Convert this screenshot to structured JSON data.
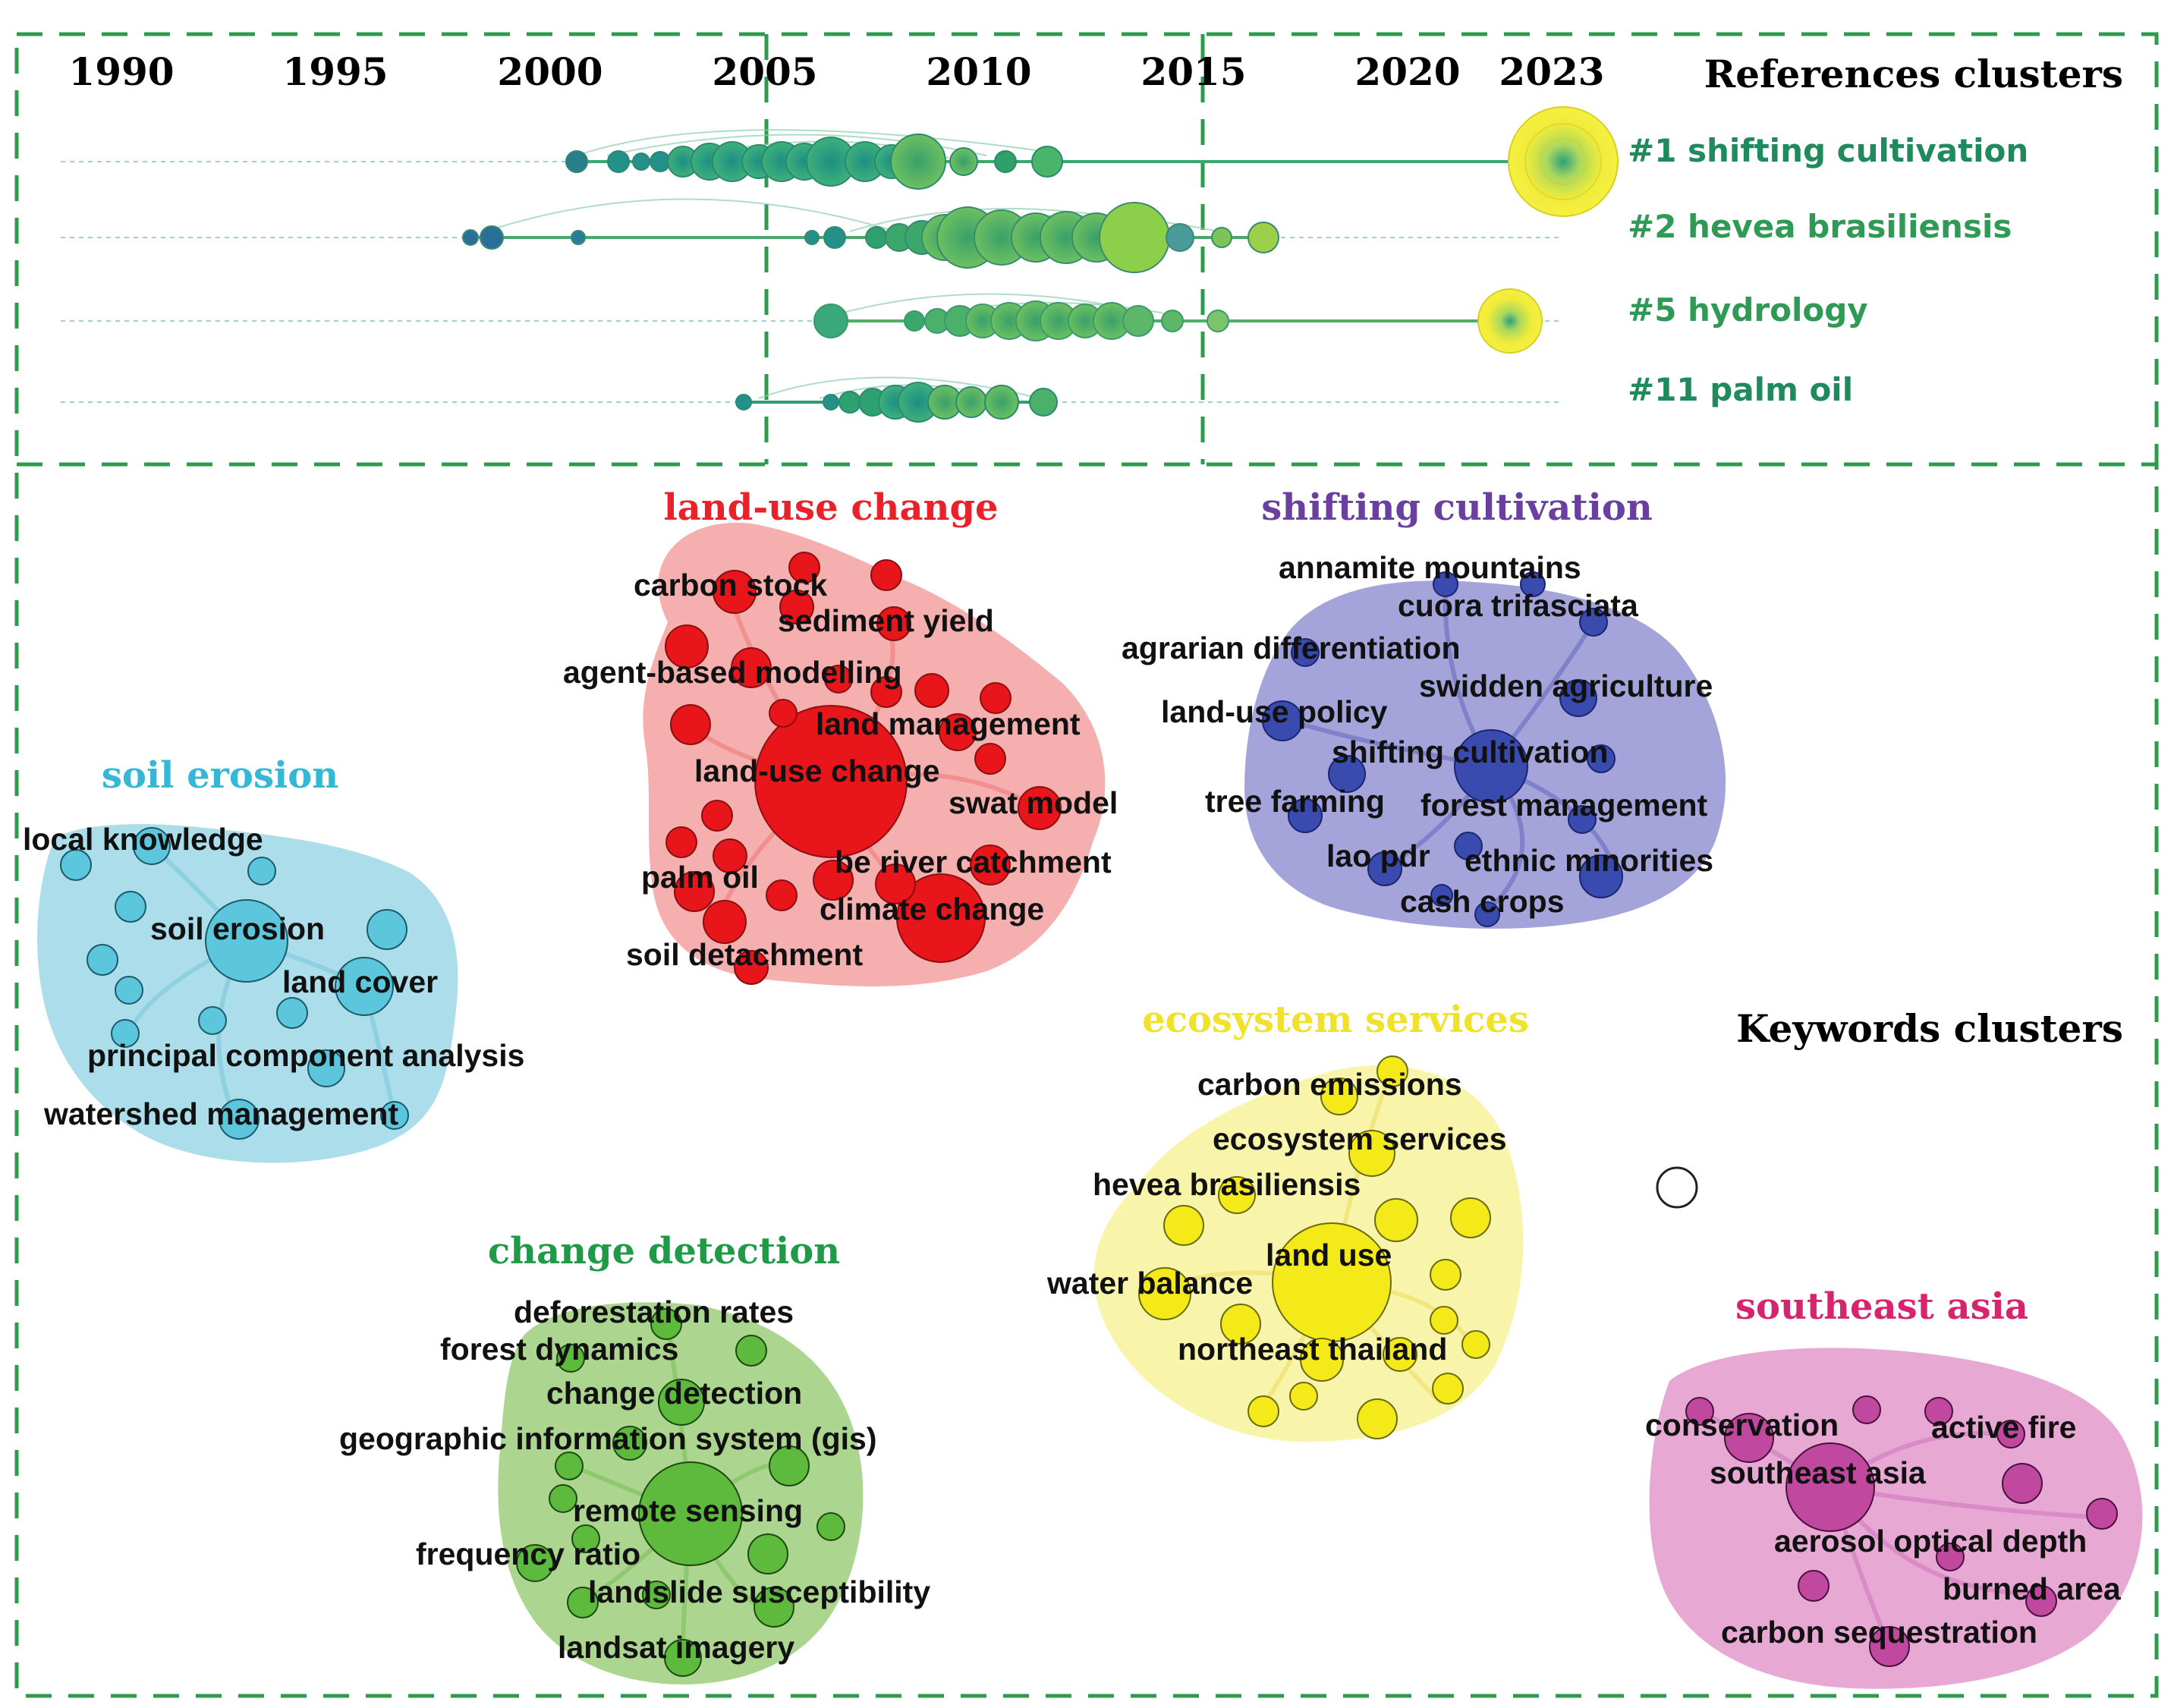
{
  "top_panel": {
    "years": [
      "1990",
      "1995",
      "2000",
      "2005",
      "2010",
      "2015",
      "2020",
      "2023"
    ],
    "title": "References clusters",
    "clusters": [
      {
        "label": "#1 shifting cultivation",
        "color": "#1f8a5c"
      },
      {
        "label": "#2 hevea brasiliensis",
        "color": "#2e9a55"
      },
      {
        "label": "#5 hydrology",
        "color": "#2e9a55"
      },
      {
        "label": "#11 palm oil",
        "color": "#1f8a5c"
      }
    ]
  },
  "bottom_panel": {
    "title": "Keywords clusters",
    "clusters": [
      {
        "title": "land-use change",
        "color": "#e8212b",
        "keywords": [
          "carbon stock",
          "sediment yield",
          "agent-based modelling",
          "land management",
          "land-use change",
          "swat model",
          "palm oil",
          "be river catchment",
          "climate change",
          "soil detachment"
        ]
      },
      {
        "title": "shifting cultivation",
        "color": "#6a3fa0",
        "keywords": [
          "annamite mountains",
          "cuora trifasciata",
          "agrarian differentiation",
          "swidden agriculture",
          "land-use policy",
          "shifting cultivation",
          "tree farming",
          "forest management",
          "lao pdr",
          "ethnic minorities",
          "cash crops"
        ]
      },
      {
        "title": "soil erosion",
        "color": "#35b7d6",
        "keywords": [
          "local knowledge",
          "soil erosion",
          "land cover",
          "principal component analysis",
          "watershed management"
        ]
      },
      {
        "title": "ecosystem services",
        "color": "#f0e22a",
        "keywords": [
          "carbon emissions",
          "ecosystem services",
          "hevea brasiliensis",
          "land use",
          "water balance",
          "northeast thailand"
        ]
      },
      {
        "title": "change detection",
        "color": "#1f9b48",
        "keywords": [
          "deforestation rates",
          "forest dynamics",
          "change detection",
          "geographic information system (gis)",
          "remote sensing",
          "frequency ratio",
          "landslide susceptibility",
          "landsat imagery"
        ]
      },
      {
        "title": "southeast asia",
        "color": "#d6246e",
        "keywords": [
          "conservation",
          "active fire",
          "southeast asia",
          "aerosol optical depth",
          "burned area",
          "carbon sequestration"
        ]
      }
    ]
  },
  "colors": {
    "frame": "#2e9a4c",
    "red_blob": "#f4a6a6",
    "red_node": "#e8151b",
    "blue_blob": "#9a9ad6",
    "blue_node": "#3a4bb0",
    "cyan_blob": "#a6dce9",
    "cyan_node": "#5cc6dc",
    "yellow_blob": "#f8f4a6",
    "yellow_node": "#f4ea1a",
    "green_blob": "#a8d48a",
    "green_node": "#5dba3c",
    "pink_blob": "#e6a4d2",
    "pink_node": "#c0489e"
  }
}
